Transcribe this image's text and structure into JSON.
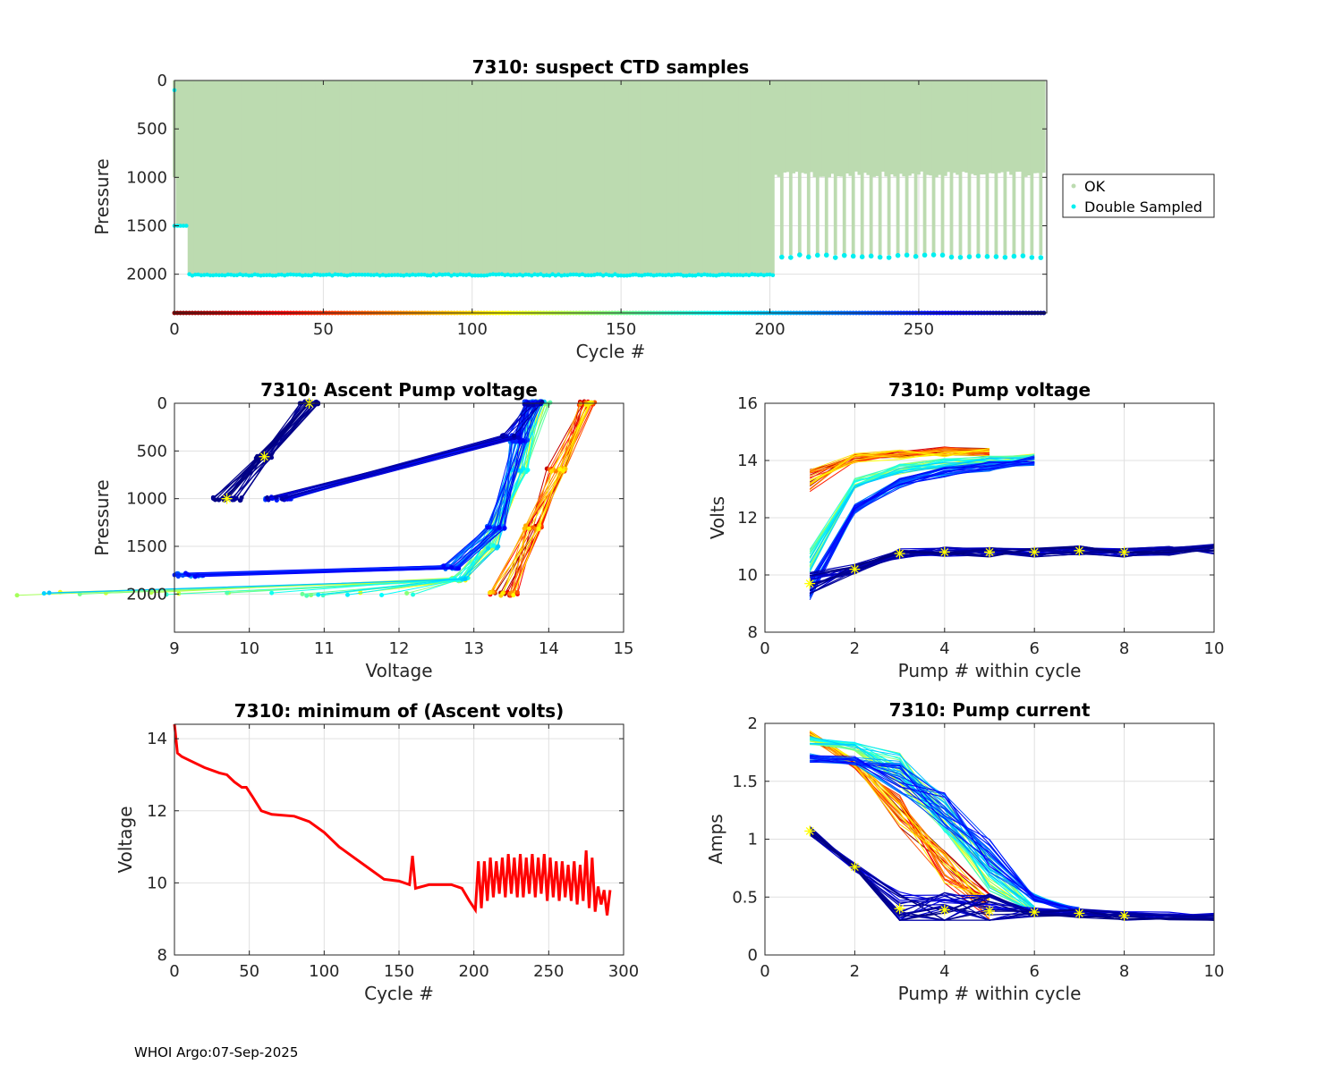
{
  "footer": "WHOI Argo:07-Sep-2025",
  "colors": {
    "ok": "#bcdbb0",
    "double_sampled": "#00f0f0",
    "marker": "#ffff00",
    "min_volts": "#ff0000"
  },
  "chart_data": [
    {
      "id": "ctd",
      "type": "scatter",
      "title": "7310: suspect CTD samples",
      "xlabel": "Cycle #",
      "ylabel": "Pressure",
      "xlim": [
        0,
        293
      ],
      "ylim": [
        0,
        2400
      ],
      "y_reversed": true,
      "grid": true,
      "xticks": [
        0,
        50,
        100,
        150,
        200,
        250
      ],
      "yticks": [
        0,
        500,
        1000,
        1500,
        2000
      ],
      "legend": {
        "placement": "outside-right",
        "entries": [
          "OK",
          "Double Sampled"
        ]
      },
      "segments": [
        {
          "cycles": [
            0,
            4
          ],
          "ok_bottom": 1500,
          "double_sampled": [
            100,
            1500
          ]
        },
        {
          "cycles": [
            5,
            201
          ],
          "ok_bottom": 2000,
          "double_sampled": [
            2000
          ]
        },
        {
          "cycles": [
            202,
            292
          ],
          "ok_bottom_alternating": [
            1000,
            1800
          ],
          "double_sampled": [
            1800
          ]
        }
      ],
      "cycle_marker_pressure": 2400
    },
    {
      "id": "ascent",
      "type": "line",
      "title": "7310: Ascent Pump voltage",
      "xlabel": "Voltage",
      "ylabel": "Pressure",
      "xlim": [
        9,
        15
      ],
      "ylim": [
        0,
        2400
      ],
      "y_reversed": true,
      "grid": true,
      "xticks": [
        9,
        10,
        11,
        12,
        13,
        14,
        15
      ],
      "yticks": [
        0,
        500,
        1000,
        1500,
        2000
      ],
      "groups": [
        {
          "cycles": [
            5,
            110
          ],
          "points": [
            [
              13.4,
              2000
            ],
            [
              13.8,
              1300
            ],
            [
              14.1,
              700
            ],
            [
              14.5,
              0
            ]
          ]
        },
        {
          "cycles": [
            110,
            200
          ],
          "points": [
            [
              9.3,
              2000
            ],
            [
              12.8,
              1850
            ],
            [
              13.2,
              1500
            ],
            [
              13.6,
              700
            ],
            [
              13.9,
              0
            ]
          ]
        },
        {
          "cycles": [
            200,
            260
          ],
          "points": [
            [
              9.2,
              1800
            ],
            [
              12.7,
              1720
            ],
            [
              13.3,
              1300
            ],
            [
              13.6,
              400
            ],
            [
              13.8,
              0
            ]
          ]
        },
        {
          "cycles": [
            230,
            285
          ],
          "points": [
            [
              10.4,
              1000
            ],
            [
              13.5,
              350
            ],
            [
              13.8,
              0
            ]
          ]
        },
        {
          "cycles": [
            285,
            293
          ],
          "points": [
            [
              9.7,
              1000
            ],
            [
              10.2,
              560
            ],
            [
              10.8,
              0
            ]
          ]
        }
      ]
    },
    {
      "id": "pumpv",
      "type": "line",
      "title": "7310: Pump voltage",
      "xlabel": "Pump # within cycle",
      "ylabel": "Volts",
      "xlim": [
        0,
        10
      ],
      "ylim": [
        8,
        16
      ],
      "grid": true,
      "xticks": [
        0,
        2,
        4,
        6,
        8,
        10
      ],
      "yticks": [
        8,
        10,
        12,
        14,
        16
      ],
      "groups": [
        {
          "cycles": [
            0,
            110
          ],
          "values": [
            13.3,
            14.1,
            14.2,
            14.3,
            14.3
          ]
        },
        {
          "cycles": [
            110,
            200
          ],
          "values": [
            10.5,
            13.2,
            13.7,
            13.9,
            14.0,
            14.05
          ]
        },
        {
          "cycles": [
            200,
            260
          ],
          "values": [
            9.5,
            12.3,
            13.2,
            13.6,
            13.8,
            14.0
          ]
        },
        {
          "cycles": [
            260,
            293
          ],
          "values": [
            9.7,
            10.2,
            10.75,
            10.8,
            10.8,
            10.8,
            10.85,
            10.8,
            10.85,
            10.9
          ]
        }
      ]
    },
    {
      "id": "minv",
      "type": "line",
      "title": "7310: minimum of (Ascent volts)",
      "xlabel": "Cycle #",
      "ylabel": "Voltage",
      "xlim": [
        0,
        300
      ],
      "ylim": [
        8,
        14.4
      ],
      "grid": true,
      "xticks": [
        0,
        50,
        100,
        150,
        200,
        250,
        300
      ],
      "yticks": [
        8,
        10,
        12,
        14
      ],
      "x": [
        0,
        2,
        5,
        10,
        20,
        30,
        35,
        40,
        45,
        48,
        52,
        58,
        65,
        80,
        90,
        100,
        110,
        120,
        130,
        140,
        150,
        157,
        159,
        161,
        170,
        185,
        192,
        197,
        201,
        203,
        205,
        207,
        209,
        211,
        213,
        215,
        217,
        219,
        221,
        223,
        225,
        227,
        229,
        231,
        233,
        235,
        237,
        239,
        241,
        243,
        245,
        247,
        249,
        251,
        253,
        255,
        257,
        259,
        261,
        263,
        265,
        267,
        269,
        271,
        273,
        275,
        277,
        279,
        281,
        283,
        285,
        287,
        289,
        291
      ],
      "y": [
        14.4,
        13.6,
        13.5,
        13.4,
        13.2,
        13.05,
        13.0,
        12.8,
        12.65,
        12.65,
        12.4,
        12.0,
        11.9,
        11.85,
        11.7,
        11.4,
        11.0,
        10.7,
        10.4,
        10.1,
        10.05,
        9.95,
        10.75,
        9.85,
        9.95,
        9.95,
        9.85,
        9.5,
        9.25,
        10.6,
        9.3,
        10.6,
        9.5,
        10.7,
        9.6,
        10.6,
        9.7,
        10.7,
        9.6,
        10.8,
        9.7,
        10.7,
        9.6,
        10.8,
        9.6,
        10.7,
        9.7,
        10.8,
        9.6,
        10.7,
        9.7,
        10.8,
        9.5,
        10.7,
        9.6,
        10.6,
        9.5,
        10.6,
        9.6,
        10.5,
        9.5,
        10.6,
        9.4,
        10.5,
        9.5,
        10.9,
        9.3,
        10.7,
        9.2,
        9.9,
        9.4,
        9.8,
        9.1,
        9.8
      ]
    },
    {
      "id": "pumpc",
      "type": "line",
      "title": "7310: Pump current",
      "xlabel": "Pump # within cycle",
      "ylabel": "Amps",
      "xlim": [
        0,
        10
      ],
      "ylim": [
        0,
        2
      ],
      "grid": true,
      "xticks": [
        0,
        2,
        4,
        6,
        8,
        10
      ],
      "yticks": [
        0,
        0.5,
        1,
        1.5,
        2
      ],
      "groups": [
        {
          "cycles": [
            0,
            110
          ],
          "values": [
            1.9,
            1.65,
            1.25,
            0.75,
            0.4
          ]
        },
        {
          "cycles": [
            110,
            200
          ],
          "values": [
            1.85,
            1.8,
            1.6,
            1.2,
            0.7,
            0.38
          ]
        },
        {
          "cycles": [
            200,
            260
          ],
          "values": [
            1.7,
            1.68,
            1.55,
            1.25,
            0.85,
            0.5,
            0.37
          ]
        },
        {
          "cycles": [
            260,
            293
          ],
          "values": [
            1.07,
            0.76,
            0.4,
            0.39,
            0.38,
            0.37,
            0.36,
            0.34,
            0.33,
            0.32
          ]
        }
      ]
    }
  ]
}
